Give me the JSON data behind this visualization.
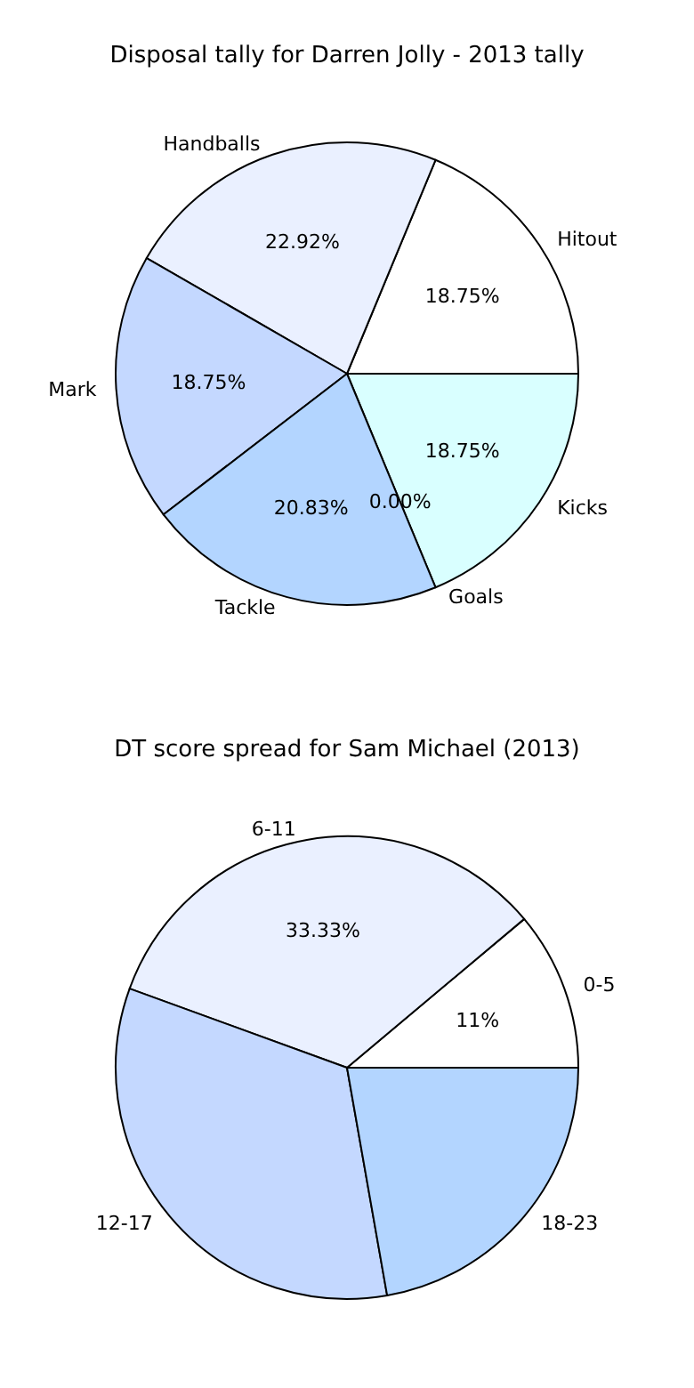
{
  "chart_data": [
    {
      "type": "pie",
      "title": "Disposal tally for Darren Jolly - 2013 tally",
      "categories": [
        "Kicks",
        "Hitout",
        "Handballs",
        "Mark",
        "Tackle",
        "Goals"
      ],
      "values": [
        18.75,
        18.75,
        22.92,
        18.75,
        20.83,
        0
      ],
      "colors": [
        "#d9ffff",
        "#ffffff",
        "#eaf0ff",
        "#c4d8ff",
        "#b3d5ff",
        "#cce0ff"
      ],
      "value_labels": [
        "18.75%",
        "18.75%",
        "22.92%",
        "18.75%",
        "20.83%",
        "0.00%"
      ]
    },
    {
      "type": "pie",
      "title": "DT score spread for Sam Michael (2013)",
      "categories": [
        "0-5",
        "6-11",
        "12-17",
        "18-23"
      ],
      "values": [
        11.11,
        33.33,
        33.33,
        22.22
      ],
      "colors": [
        "#ffffff",
        "#eaf0ff",
        "#c4d8ff",
        "#b3d5ff"
      ],
      "value_labels": [
        "11%",
        "33.33%",
        null,
        null
      ]
    }
  ]
}
